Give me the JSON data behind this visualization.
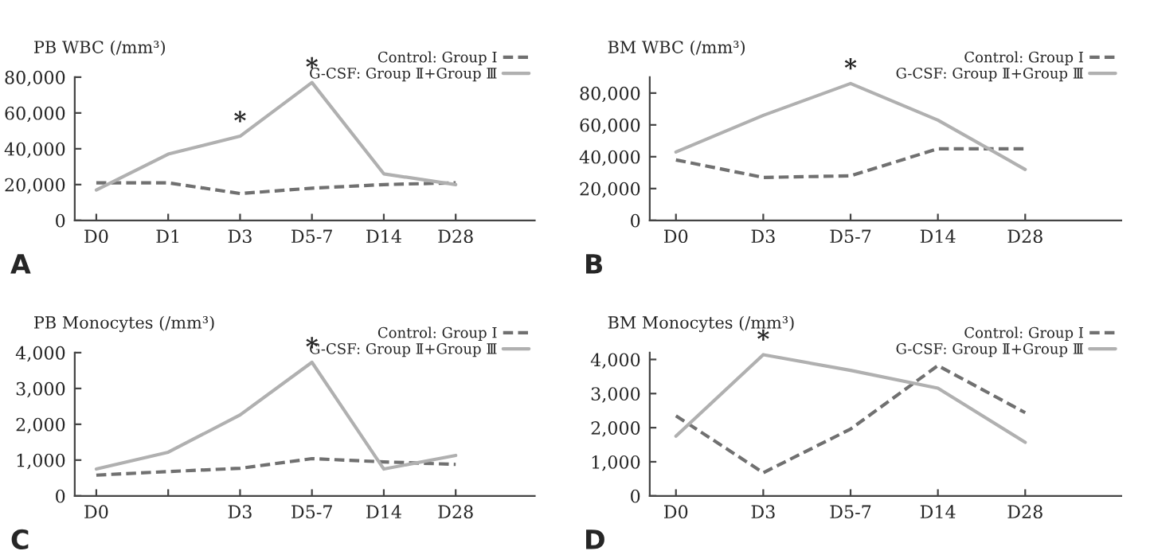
{
  "chart_data": [
    {
      "type": "line",
      "ylabel": "PB WBC (/mm³)",
      "categories": [
        "D0",
        "D1",
        "D3",
        "D5-7",
        "D14",
        "D28"
      ],
      "ylim": [
        0,
        80000
      ],
      "yticks": [
        0,
        {
          "value": 20000,
          "label": "20,000"
        },
        {
          "value": 40000,
          "label": "40,000"
        },
        {
          "value": 60000,
          "label": "60,000"
        },
        {
          "value": 80000,
          "label": "80,000"
        }
      ],
      "series": [
        {
          "name": "Control: Group Ⅰ",
          "color": "#707070",
          "line_style": "dashed",
          "values": [
            21000,
            21000,
            15000,
            18000,
            20000,
            21000
          ]
        },
        {
          "name": "G-CSF: Group Ⅱ+Group Ⅲ",
          "color": "#b0b0b0",
          "line_style": "solid",
          "values": [
            17000,
            37000,
            47000,
            77000,
            26000,
            20000
          ]
        }
      ],
      "legend": "top right",
      "grid": false,
      "annotations": [
        {
          "text": "*",
          "x": "D3",
          "y": 47000
        },
        {
          "text": "*",
          "x": "D5-7",
          "y": 77000
        },
        "A"
      ]
    },
    {
      "type": "line",
      "ylabel": "BM WBC (/mm³)",
      "categories": [
        "D0",
        "D3",
        "D5-7",
        "D14",
        "D28"
      ],
      "ylim": [
        0,
        90000
      ],
      "yticks": [
        0,
        {
          "value": 20000,
          "label": "20,000"
        },
        {
          "value": 40000,
          "label": "40,000"
        },
        {
          "value": 60000,
          "label": "60,000"
        },
        {
          "value": 80000,
          "label": "80,000"
        }
      ],
      "series": [
        {
          "name": "Control: Group Ⅰ",
          "color": "#707070",
          "line_style": "dashed",
          "values": [
            38000,
            27000,
            28000,
            45000,
            45000
          ]
        },
        {
          "name": "G-CSF: Group Ⅱ+Group Ⅲ",
          "color": "#b0b0b0",
          "line_style": "solid",
          "values": [
            43000,
            66000,
            86000,
            63000,
            32000
          ]
        }
      ],
      "legend": "top right",
      "grid": false,
      "annotations": [
        {
          "text": "*",
          "x": "D5-7",
          "y": 86000
        },
        "B"
      ]
    },
    {
      "type": "line",
      "ylabel": "PB Monocytes (/mm³)",
      "categories": [
        "D0",
        null,
        "D3",
        "D5-7",
        "D14",
        "D28"
      ],
      "ylim": [
        0,
        4000
      ],
      "yticks": [
        0,
        {
          "value": 1000,
          "label": "1,000"
        },
        {
          "value": 2000,
          "label": "2,000"
        },
        {
          "value": 3000,
          "label": "3,000"
        },
        {
          "value": 4000,
          "label": "4,000"
        }
      ],
      "series": [
        {
          "name": "Control: Group Ⅰ",
          "color": "#707070",
          "line_style": "dashed",
          "values": [
            580,
            680,
            770,
            1040,
            950,
            880
          ]
        },
        {
          "name": "G-CSF: Group Ⅱ+Group Ⅲ",
          "color": "#b0b0b0",
          "line_style": "solid",
          "values": [
            750,
            1220,
            2260,
            3730,
            750,
            1130
          ]
        }
      ],
      "legend": "top right",
      "grid": false,
      "annotations": [
        {
          "text": "*",
          "x": "D5-7",
          "y": 3730
        },
        "C"
      ]
    },
    {
      "type": "line",
      "ylabel": "BM Monocytes (/mm³)",
      "categories": [
        "D0",
        "D3",
        "D5-7",
        "D14",
        "D28"
      ],
      "ylim": [
        0,
        4200
      ],
      "yticks": [
        0,
        {
          "value": 1000,
          "label": "1,000"
        },
        {
          "value": 2000,
          "label": "2,000"
        },
        {
          "value": 3000,
          "label": "3,000"
        },
        {
          "value": 4000,
          "label": "4,000"
        }
      ],
      "series": [
        {
          "name": "Control: Group Ⅰ",
          "color": "#707070",
          "line_style": "dashed",
          "values": [
            2350,
            680,
            1960,
            3820,
            2440
          ]
        },
        {
          "name": "G-CSF: Group Ⅱ+Group Ⅲ",
          "color": "#b0b0b0",
          "line_style": "solid",
          "values": [
            1750,
            4140,
            3680,
            3160,
            1570
          ]
        }
      ],
      "legend": "top right",
      "grid": false,
      "annotations": [
        {
          "text": "*",
          "x": "D3",
          "y": 4140
        },
        "D"
      ]
    }
  ]
}
